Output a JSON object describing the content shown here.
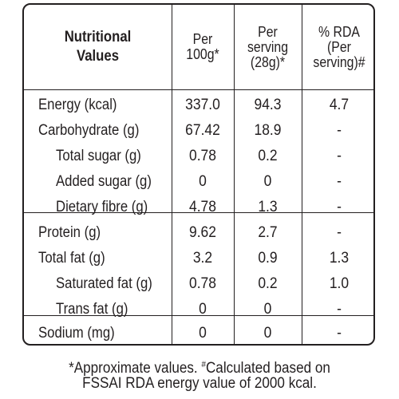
{
  "headers": {
    "nutrient": [
      "Nutritional",
      "Values"
    ],
    "per100g": [
      "Per",
      "100g*"
    ],
    "perServing": [
      "Per",
      "serving",
      "(28g)*"
    ],
    "rda": [
      "% RDA",
      "(Per",
      "serving)#"
    ]
  },
  "rows": [
    {
      "label": "Energy (kcal)",
      "per100g": "337.0",
      "perServing": "94.3",
      "rda": "4.7",
      "indent": false
    },
    {
      "label": "Carbohydrate (g)",
      "per100g": "67.42",
      "perServing": "18.9",
      "rda": "-",
      "indent": false
    },
    {
      "label": "Total sugar (g)",
      "per100g": "0.78",
      "perServing": "0.2",
      "rda": "-",
      "indent": true
    },
    {
      "label": "Added sugar (g)",
      "per100g": "0",
      "perServing": "0",
      "rda": "-",
      "indent": true
    },
    {
      "label": "Dietary fibre (g)",
      "per100g": "4.78",
      "perServing": "1.3",
      "rda": "-",
      "indent": true
    },
    {
      "label": "Protein (g)",
      "per100g": "9.62",
      "perServing": "2.7",
      "rda": "-",
      "indent": false
    },
    {
      "label": "Total fat (g)",
      "per100g": "3.2",
      "perServing": "0.9",
      "rda": "1.3",
      "indent": false
    },
    {
      "label": "Saturated fat (g)",
      "per100g": "0.78",
      "perServing": "0.2",
      "rda": "1.0",
      "indent": true
    },
    {
      "label": "Trans fat (g)",
      "per100g": "0",
      "perServing": "0",
      "rda": "-",
      "indent": true
    },
    {
      "label": "Sodium (mg)",
      "per100g": "0",
      "perServing": "0",
      "rda": "-",
      "indent": false
    }
  ],
  "footnote": {
    "line1_a": "*Approximate values. ",
    "line1_mark": "#",
    "line1_b": "Calculated based on",
    "line2": "FSSAI RDA energy value of 2000 kcal."
  },
  "colors": {
    "ink": "#231f20",
    "background": "#ffffff"
  }
}
